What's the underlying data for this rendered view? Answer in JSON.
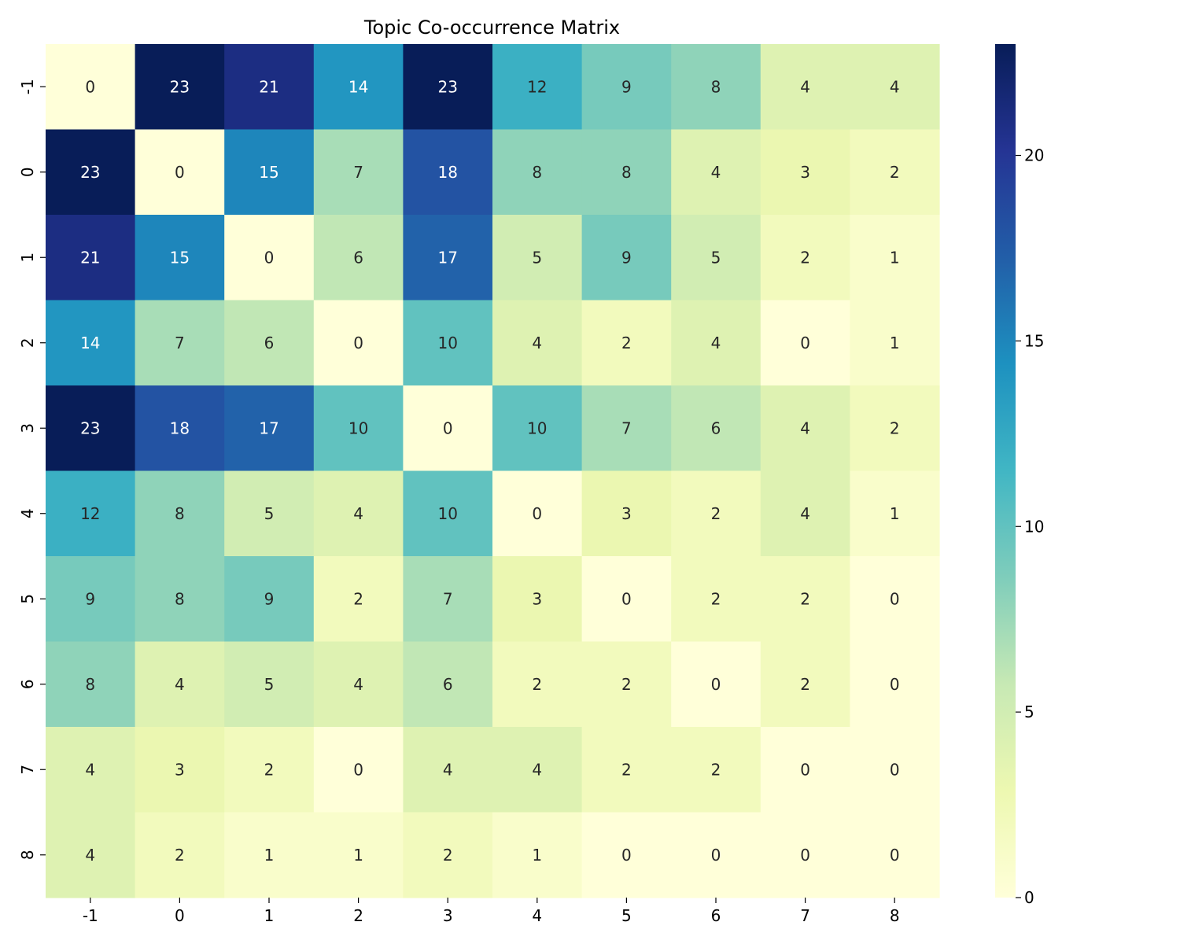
{
  "chart_data": {
    "type": "heatmap",
    "title": "Topic Co-occurrence Matrix",
    "xlabel": "",
    "ylabel": "",
    "x_labels": [
      "-1",
      "0",
      "1",
      "2",
      "3",
      "4",
      "5",
      "6",
      "7",
      "8"
    ],
    "y_labels": [
      "-1",
      "0",
      "1",
      "2",
      "3",
      "4",
      "5",
      "6",
      "7",
      "8"
    ],
    "values": [
      [
        0,
        23,
        21,
        14,
        23,
        12,
        9,
        8,
        4,
        4
      ],
      [
        23,
        0,
        15,
        7,
        18,
        8,
        8,
        4,
        3,
        2
      ],
      [
        21,
        15,
        0,
        6,
        17,
        5,
        9,
        5,
        2,
        1
      ],
      [
        14,
        7,
        6,
        0,
        10,
        4,
        2,
        4,
        0,
        1
      ],
      [
        23,
        18,
        17,
        10,
        0,
        10,
        7,
        6,
        4,
        2
      ],
      [
        12,
        8,
        5,
        4,
        10,
        0,
        3,
        2,
        4,
        1
      ],
      [
        9,
        8,
        9,
        2,
        7,
        3,
        0,
        2,
        2,
        0
      ],
      [
        8,
        4,
        5,
        4,
        6,
        2,
        2,
        0,
        2,
        0
      ],
      [
        4,
        3,
        2,
        0,
        4,
        4,
        2,
        2,
        0,
        0
      ],
      [
        4,
        2,
        1,
        1,
        2,
        1,
        0,
        0,
        0,
        0
      ]
    ],
    "colormap": "YlGnBu",
    "colormap_stops": [
      "#ffffd9",
      "#edf8b1",
      "#c7e9b4",
      "#7fcdbb",
      "#41b6c4",
      "#1d91c0",
      "#225ea8",
      "#253494",
      "#081d58"
    ],
    "annotate": true,
    "colorbar": {
      "range": [
        0,
        23
      ],
      "ticks": [
        0,
        5,
        10,
        15,
        20
      ],
      "tick_labels": [
        "0",
        "5",
        "10",
        "15",
        "20"
      ]
    },
    "grid": false
  }
}
